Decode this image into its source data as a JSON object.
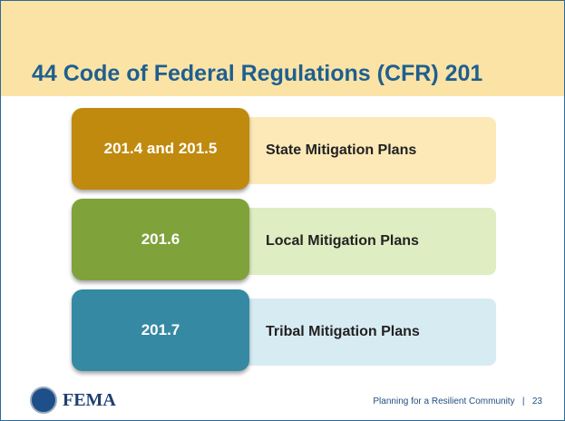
{
  "header": {
    "title": "44 Code of Federal Regulations (CFR) 201"
  },
  "items": [
    {
      "code": "201.4 and 201.5",
      "label": "State Mitigation Plans"
    },
    {
      "code": "201.6",
      "label": "Local Mitigation Plans"
    },
    {
      "code": "201.7",
      "label": "Tribal Mitigation Plans"
    }
  ],
  "footer": {
    "logo": "FEMA",
    "text": "Planning for a Resilient Community",
    "separator": "|",
    "page": "23"
  }
}
